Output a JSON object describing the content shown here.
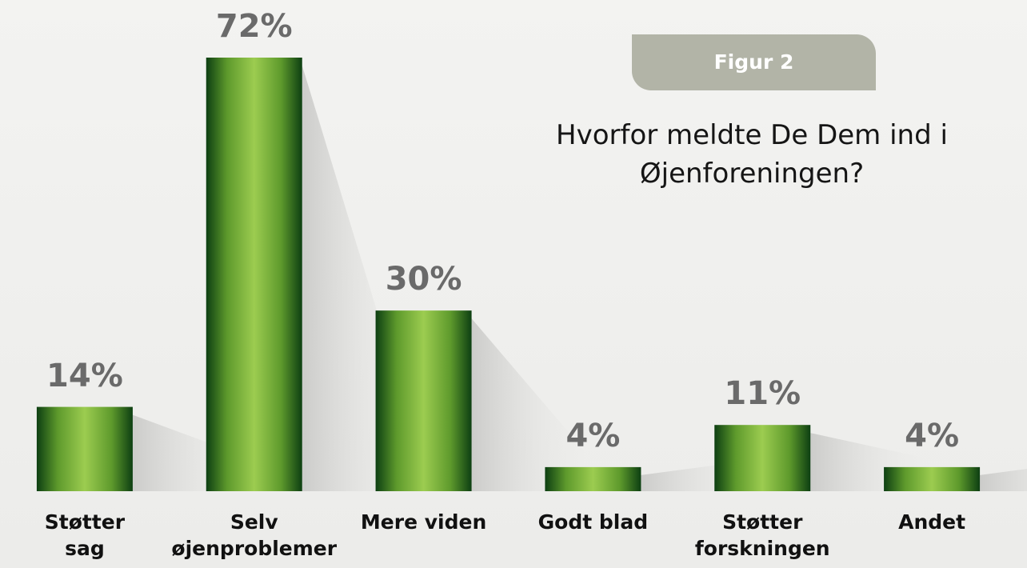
{
  "badge": "Figur 2",
  "chart_data": {
    "type": "bar",
    "title": "Hvorfor meldte De Dem ind i\nØjenforeningen?",
    "categories": [
      "Støtter\nsag",
      "Selv\nøjenproblemer",
      "Mere viden",
      "Godt blad",
      "Støtter\nforskningen",
      "Andet"
    ],
    "values": [
      14,
      72,
      30,
      4,
      11,
      4
    ],
    "value_labels": [
      "14%",
      "72%",
      "30%",
      "4%",
      "11%",
      "4%"
    ],
    "color": "#9ccc50"
  }
}
